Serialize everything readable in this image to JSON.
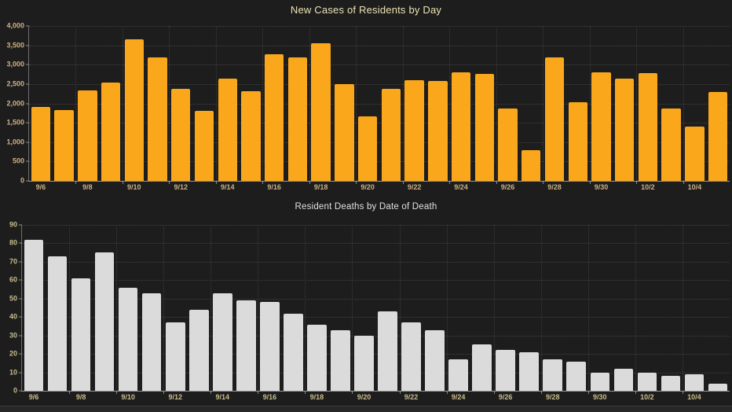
{
  "page": {
    "background": "#1d1d1d",
    "footer_divider_color": "#3c3c3c",
    "footer_strip_color": "#272727"
  },
  "chart_data": [
    {
      "type": "bar",
      "title": "New Cases of Residents by Day",
      "title_color": "#ece3b4",
      "bar_color": "#fba71b",
      "tick_label_color": "#cfb083",
      "grid": "dotted",
      "legend": "none",
      "ylim": [
        0,
        4000
      ],
      "y_tick_values": [
        0,
        500,
        1000,
        1500,
        2000,
        2500,
        3000,
        3500,
        4000
      ],
      "y_tick_labels": [
        "0",
        "500",
        "1,000",
        "1,500",
        "2,000",
        "2,500",
        "3,000",
        "3,500",
        "4,000"
      ],
      "x_tick_every": 2,
      "x_tick_labels": [
        "9/6",
        "9/8",
        "9/10",
        "9/12",
        "9/14",
        "9/16",
        "9/18",
        "9/20",
        "9/22",
        "9/24",
        "9/26",
        "9/28",
        "9/30",
        "10/2",
        "10/4"
      ],
      "categories": [
        "9/6",
        "9/7",
        "9/8",
        "9/9",
        "9/10",
        "9/11",
        "9/12",
        "9/13",
        "9/14",
        "9/15",
        "9/16",
        "9/17",
        "9/18",
        "9/19",
        "9/20",
        "9/21",
        "9/22",
        "9/23",
        "9/24",
        "9/25",
        "9/26",
        "9/27",
        "9/28",
        "9/29",
        "9/30",
        "10/1",
        "10/2",
        "10/3",
        "10/4",
        "10/5"
      ],
      "values": [
        1900,
        1820,
        2330,
        2530,
        3650,
        3180,
        2380,
        1800,
        2640,
        2320,
        3270,
        3190,
        3560,
        2490,
        1660,
        2380,
        2600,
        2580,
        2800,
        2770,
        1860,
        800,
        3190,
        2040,
        2800,
        2650,
        2790,
        1870,
        1400,
        2290
      ]
    },
    {
      "type": "bar",
      "title": "Resident Deaths by Date of Death",
      "title_color": "#dde1de",
      "bar_color": "#dbdbdb",
      "tick_label_color": "#c9bd8d",
      "grid": "dotted",
      "legend": "none",
      "ylim": [
        0,
        90
      ],
      "y_tick_values": [
        0,
        10,
        20,
        30,
        40,
        50,
        60,
        70,
        80,
        90
      ],
      "y_tick_labels": [
        "0",
        "10",
        "20",
        "30",
        "40",
        "50",
        "60",
        "70",
        "80",
        "90"
      ],
      "x_tick_every": 2,
      "x_tick_labels": [
        "9/6",
        "9/8",
        "9/10",
        "9/12",
        "9/14",
        "9/16",
        "9/18",
        "9/20",
        "9/22",
        "9/24",
        "9/26",
        "9/28",
        "9/30",
        "10/2",
        "10/4"
      ],
      "categories": [
        "9/6",
        "9/7",
        "9/8",
        "9/9",
        "9/10",
        "9/11",
        "9/12",
        "9/13",
        "9/14",
        "9/15",
        "9/16",
        "9/17",
        "9/18",
        "9/19",
        "9/20",
        "9/21",
        "9/22",
        "9/23",
        "9/24",
        "9/25",
        "9/26",
        "9/27",
        "9/28",
        "9/29",
        "9/30",
        "10/1",
        "10/2",
        "10/3",
        "10/4",
        "10/5"
      ],
      "values": [
        82,
        73,
        61,
        75,
        56,
        53,
        37,
        44,
        53,
        49,
        48,
        42,
        36,
        33,
        30,
        43,
        37,
        33,
        17,
        25,
        22,
        21,
        17,
        16,
        10,
        12,
        10,
        8,
        9,
        4
      ]
    }
  ]
}
